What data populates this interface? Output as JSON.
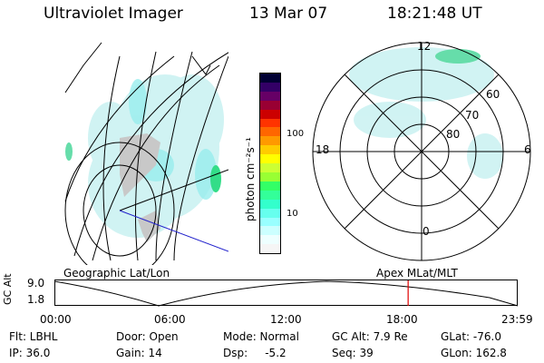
{
  "header": {
    "title": "Ultraviolet Imager",
    "date": "13 Mar 07",
    "time": "18:21:48 UT"
  },
  "colorbar": {
    "unit": "photon cm⁻²s⁻¹",
    "ticks": [
      "100",
      "10"
    ],
    "colors": [
      "#000033",
      "#330066",
      "#660066",
      "#990033",
      "#cc0000",
      "#ff3300",
      "#ff6600",
      "#ff9900",
      "#ffcc00",
      "#ffff00",
      "#ccff33",
      "#99ff33",
      "#33ff66",
      "#33ff99",
      "#33ffcc",
      "#66ffee",
      "#99ffff",
      "#ccffff",
      "#eeffff",
      "#f5f5f5"
    ]
  },
  "panels": {
    "left_label": "Geographic Lat/Lon",
    "right_label": "Apex MLat/MLT",
    "polar": {
      "top": "12",
      "left": "18",
      "right": "6",
      "bottom": "0",
      "r60": "60",
      "r70": "70",
      "r80": "80"
    }
  },
  "timeline": {
    "ylabel": "GC Alt",
    "ymax": "9.0",
    "ymin": "1.8",
    "ticks": [
      "00:00",
      "06:00",
      "12:00",
      "18:00",
      "23:59"
    ],
    "marker_fraction": 0.765
  },
  "info": {
    "flt": "Flt: LBHL",
    "door": "Door: Open",
    "mode": "Mode: Normal",
    "gcalt": "GC Alt: 7.9 Re",
    "glat": "GLat: -76.0",
    "ip": "IP: 36.0",
    "gain": "Gain: 14",
    "dsp": "Dsp:     -5.2",
    "seq": "Seq: 39",
    "glon": "GLon: 162.8"
  }
}
